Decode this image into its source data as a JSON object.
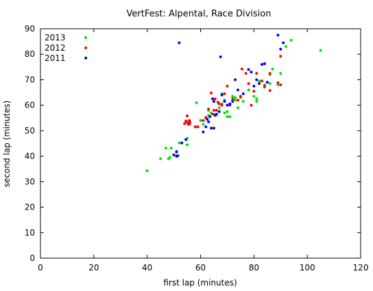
{
  "chart_data": {
    "type": "scatter",
    "title": "VertFest: Alpental, Race Division",
    "xlabel": "first lap (minutes)",
    "ylabel": "second lap (minutes)",
    "xlim": [
      0,
      120
    ],
    "ylim": [
      0,
      90
    ],
    "xticks": [
      0,
      20,
      40,
      60,
      80,
      100,
      120
    ],
    "yticks": [
      0,
      10,
      20,
      30,
      40,
      50,
      60,
      70,
      80,
      90
    ],
    "grid": false,
    "legend_position": "top-left",
    "series": [
      {
        "name": "2013",
        "color": "#00e000",
        "points": [
          [
            40,
            34.3
          ],
          [
            45,
            39
          ],
          [
            47,
            43.2
          ],
          [
            48,
            39
          ],
          [
            48.5,
            39.5
          ],
          [
            49,
            43.2
          ],
          [
            50,
            40.5
          ],
          [
            51,
            41.5
          ],
          [
            52,
            45.2
          ],
          [
            55,
            44.5
          ],
          [
            55,
            47
          ],
          [
            58.5,
            61
          ],
          [
            59,
            51.5
          ],
          [
            60,
            54
          ],
          [
            61,
            52.5
          ],
          [
            62,
            55
          ],
          [
            63,
            56
          ],
          [
            63,
            58
          ],
          [
            64,
            57
          ],
          [
            65,
            56.5
          ],
          [
            66,
            58
          ],
          [
            67,
            59
          ],
          [
            68,
            60.5
          ],
          [
            68,
            64.5
          ],
          [
            69,
            62
          ],
          [
            69,
            57
          ],
          [
            70,
            55.5
          ],
          [
            70,
            57.5
          ],
          [
            71,
            55.5
          ],
          [
            72,
            63.5
          ],
          [
            73,
            63
          ],
          [
            73,
            62
          ],
          [
            74,
            59
          ],
          [
            75,
            63
          ],
          [
            76,
            61.5
          ],
          [
            78,
            66
          ],
          [
            80,
            63.5
          ],
          [
            81,
            62.5
          ],
          [
            81,
            61.5
          ],
          [
            82,
            69.5
          ],
          [
            84,
            67
          ],
          [
            84,
            68
          ],
          [
            86,
            68.5
          ],
          [
            86,
            72
          ],
          [
            87,
            74.2
          ],
          [
            89,
            68
          ],
          [
            90,
            72.5
          ],
          [
            92,
            83
          ],
          [
            94,
            85.5
          ],
          [
            105,
            81.5
          ],
          [
            17,
            86.5
          ]
        ]
      },
      {
        "name": "2012",
        "color": "#ff0000",
        "points": [
          [
            54,
            52.8
          ],
          [
            54.5,
            53.8
          ],
          [
            55,
            55.8
          ],
          [
            55,
            53.2
          ],
          [
            55.5,
            52.5
          ],
          [
            55.8,
            54
          ],
          [
            56,
            53.5
          ],
          [
            56,
            52.8
          ],
          [
            58,
            51.5
          ],
          [
            59,
            51.5
          ],
          [
            61,
            54
          ],
          [
            62,
            55.2
          ],
          [
            63,
            58.5
          ],
          [
            64,
            64.8
          ],
          [
            64.5,
            56.5
          ],
          [
            65,
            58
          ],
          [
            65.5,
            62.5
          ],
          [
            66,
            58
          ],
          [
            66.5,
            61.2
          ],
          [
            67,
            60.5
          ],
          [
            68,
            60
          ],
          [
            69,
            64.5
          ],
          [
            70,
            67.5
          ],
          [
            71,
            60
          ],
          [
            72,
            62.5
          ],
          [
            74,
            62
          ],
          [
            75,
            63.5
          ],
          [
            75.5,
            74.2
          ],
          [
            77,
            72.5
          ],
          [
            78,
            68.5
          ],
          [
            79,
            60
          ],
          [
            80,
            65.5
          ],
          [
            81,
            72.5
          ],
          [
            83,
            69.5
          ],
          [
            84,
            67.5
          ],
          [
            86,
            65.8
          ],
          [
            86,
            72.5
          ],
          [
            89,
            68.8
          ],
          [
            90,
            68
          ],
          [
            90,
            79.2
          ],
          [
            17,
            82.5
          ]
        ]
      },
      {
        "name": "2011",
        "color": "#0000ff",
        "points": [
          [
            50,
            40.5
          ],
          [
            51,
            40
          ],
          [
            51,
            41.8
          ],
          [
            51.5,
            40.2
          ],
          [
            53,
            45.2
          ],
          [
            54.5,
            46.5
          ],
          [
            61,
            49.5
          ],
          [
            62,
            51.5
          ],
          [
            62.5,
            54.5
          ],
          [
            63,
            53.5
          ],
          [
            63.5,
            55.5
          ],
          [
            64,
            51
          ],
          [
            65,
            51
          ],
          [
            64.5,
            62.5
          ],
          [
            65,
            61.5
          ],
          [
            65.5,
            56
          ],
          [
            66,
            56.5
          ],
          [
            67,
            57.5
          ],
          [
            68,
            64
          ],
          [
            69,
            61.5
          ],
          [
            70,
            60
          ],
          [
            71,
            60.5
          ],
          [
            72,
            61.5
          ],
          [
            73,
            70
          ],
          [
            74,
            66
          ],
          [
            76,
            64.5
          ],
          [
            78,
            74
          ],
          [
            79,
            73
          ],
          [
            80,
            67.5
          ],
          [
            81,
            70
          ],
          [
            82,
            68.5
          ],
          [
            83,
            76
          ],
          [
            84,
            76.3
          ],
          [
            85,
            69
          ],
          [
            90,
            82
          ],
          [
            89,
            87.5
          ],
          [
            91,
            84.5
          ],
          [
            52,
            84.5
          ],
          [
            67.5,
            79
          ],
          [
            17,
            78.5
          ]
        ]
      }
    ]
  }
}
